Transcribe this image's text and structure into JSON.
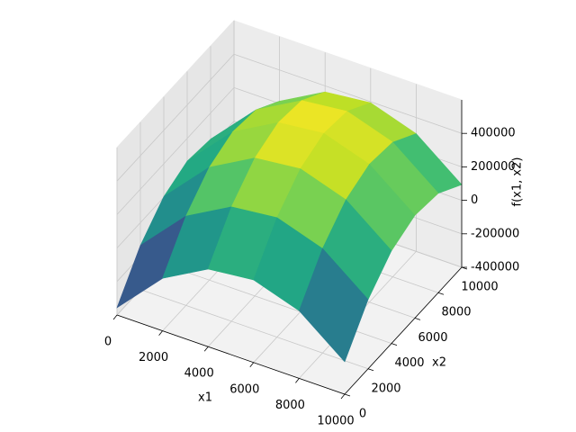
{
  "chart_data": {
    "type": "surface",
    "x_label": "x1",
    "y_label": "x2",
    "z_label": "f(x1, x2)",
    "x": [
      0,
      2000,
      4000,
      6000,
      8000,
      10000
    ],
    "y": [
      0,
      2000,
      4000,
      6000,
      8000,
      10000
    ],
    "z": [
      [
        -356250,
        -86250,
        63750,
        93750,
        3750,
        -206250
      ],
      [
        -136250,
        133750,
        283750,
        313750,
        223750,
        13750
      ],
      [
        3750,
        273750,
        423750,
        453750,
        363750,
        153750
      ],
      [
        63750,
        333750,
        483750,
        513750,
        423750,
        213750
      ],
      [
        43750,
        313750,
        463750,
        493750,
        403750,
        193750
      ],
      [
        -56250,
        213750,
        363750,
        393750,
        303750,
        93750
      ]
    ],
    "xlim": [
      0,
      10000
    ],
    "ylim": [
      0,
      10000
    ],
    "zlim": [
      -400000,
      600000
    ],
    "xticks": [
      0,
      2000,
      4000,
      6000,
      8000,
      10000
    ],
    "yticks": [
      0,
      2000,
      4000,
      6000,
      8000,
      10000
    ],
    "zticks": [
      -400000,
      -200000,
      0,
      200000,
      400000
    ],
    "colormap": "viridis",
    "grid": true
  }
}
